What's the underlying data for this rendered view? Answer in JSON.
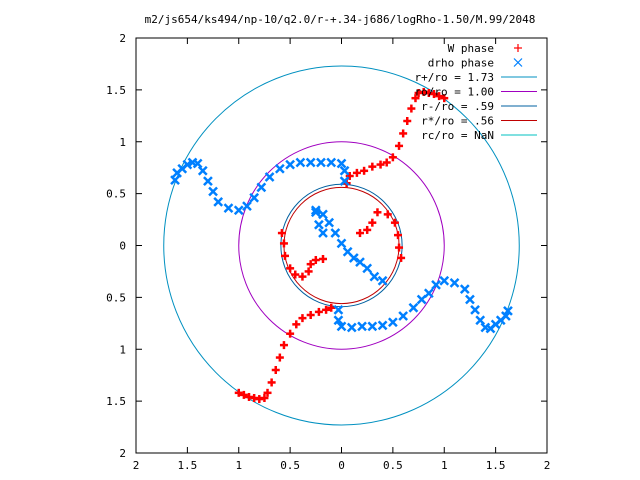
{
  "chart_data": {
    "type": "scatter",
    "title": "m2/js654/ks494/np-10/q2.0/r-+.34-j686/logRho-1.50/M.99/2048",
    "xlabel": "",
    "ylabel": "",
    "xlim": [
      -2,
      2
    ],
    "ylim": [
      -2,
      2
    ],
    "x_tick_values": [
      -2,
      -1.5,
      -1,
      -0.5,
      0,
      0.5,
      1,
      1.5,
      2
    ],
    "x_tick_labels": [
      "2",
      "1.5",
      "1",
      "0.5",
      "0",
      "0.5",
      "1",
      "1.5",
      "2"
    ],
    "y_tick_values": [
      2,
      1.5,
      1,
      0.5,
      0,
      -0.5,
      -1,
      -1.5,
      -2
    ],
    "y_tick_labels": [
      "2",
      "1.5",
      "1",
      "0.5",
      "0",
      "0.5",
      "1",
      "1.5",
      "2"
    ],
    "grid": false,
    "legend_position": "top-right",
    "series": [
      {
        "name": "W phase",
        "marker": "plus",
        "color": "#ff0000",
        "points": [
          [
            -1.0,
            -1.42
          ],
          [
            -0.95,
            -1.44
          ],
          [
            -0.9,
            -1.46
          ],
          [
            -0.85,
            -1.47
          ],
          [
            -0.8,
            -1.48
          ],
          [
            -0.75,
            -1.47
          ],
          [
            -0.72,
            -1.42
          ],
          [
            -0.68,
            -1.32
          ],
          [
            -0.64,
            -1.2
          ],
          [
            -0.6,
            -1.08
          ],
          [
            -0.56,
            -0.96
          ],
          [
            -0.5,
            -0.85
          ],
          [
            -0.44,
            -0.76
          ],
          [
            -0.38,
            -0.7
          ],
          [
            -0.3,
            -0.67
          ],
          [
            -0.22,
            -0.64
          ],
          [
            -0.15,
            -0.62
          ],
          [
            -0.1,
            -0.6
          ],
          [
            1.0,
            1.42
          ],
          [
            0.95,
            1.44
          ],
          [
            0.9,
            1.46
          ],
          [
            0.85,
            1.47
          ],
          [
            0.8,
            1.48
          ],
          [
            0.75,
            1.47
          ],
          [
            0.72,
            1.42
          ],
          [
            0.68,
            1.32
          ],
          [
            0.64,
            1.2
          ],
          [
            0.6,
            1.08
          ],
          [
            0.56,
            0.96
          ],
          [
            0.5,
            0.85
          ],
          [
            0.44,
            0.8
          ],
          [
            0.38,
            0.78
          ],
          [
            0.3,
            0.76
          ],
          [
            0.22,
            0.72
          ],
          [
            0.15,
            0.7
          ],
          [
            0.08,
            0.67
          ],
          [
            0.05,
            0.6
          ],
          [
            -0.58,
            0.12
          ],
          [
            -0.56,
            0.02
          ],
          [
            -0.55,
            -0.1
          ],
          [
            -0.5,
            -0.22
          ],
          [
            -0.45,
            -0.28
          ],
          [
            -0.38,
            -0.3
          ],
          [
            -0.32,
            -0.25
          ],
          [
            -0.3,
            -0.18
          ],
          [
            -0.25,
            -0.14
          ],
          [
            -0.18,
            -0.13
          ],
          [
            0.58,
            -0.12
          ],
          [
            0.56,
            -0.02
          ],
          [
            0.55,
            0.1
          ],
          [
            0.52,
            0.22
          ],
          [
            0.45,
            0.3
          ],
          [
            0.35,
            0.32
          ],
          [
            0.3,
            0.22
          ],
          [
            0.25,
            0.15
          ],
          [
            0.18,
            0.12
          ]
        ]
      },
      {
        "name": "drho phase",
        "marker": "cross",
        "color": "#0080ff",
        "points": [
          [
            -1.62,
            0.63
          ],
          [
            -1.6,
            0.7
          ],
          [
            -1.55,
            0.74
          ],
          [
            -1.5,
            0.78
          ],
          [
            -1.45,
            0.8
          ],
          [
            -1.4,
            0.79
          ],
          [
            -1.35,
            0.72
          ],
          [
            -1.3,
            0.62
          ],
          [
            -1.25,
            0.52
          ],
          [
            -1.2,
            0.42
          ],
          [
            -1.1,
            0.36
          ],
          [
            -1.0,
            0.34
          ],
          [
            -0.92,
            0.38
          ],
          [
            -0.85,
            0.46
          ],
          [
            -0.78,
            0.56
          ],
          [
            -0.7,
            0.66
          ],
          [
            -0.6,
            0.74
          ],
          [
            -0.5,
            0.78
          ],
          [
            -0.4,
            0.8
          ],
          [
            -0.3,
            0.8
          ],
          [
            -0.2,
            0.8
          ],
          [
            -0.1,
            0.8
          ],
          [
            0.0,
            0.79
          ],
          [
            0.03,
            0.72
          ],
          [
            0.03,
            0.62
          ],
          [
            1.62,
            -0.63
          ],
          [
            1.6,
            -0.68
          ],
          [
            1.55,
            -0.72
          ],
          [
            1.5,
            -0.76
          ],
          [
            1.45,
            -0.8
          ],
          [
            1.4,
            -0.79
          ],
          [
            1.35,
            -0.72
          ],
          [
            1.3,
            -0.62
          ],
          [
            1.25,
            -0.52
          ],
          [
            1.2,
            -0.42
          ],
          [
            1.1,
            -0.36
          ],
          [
            1.0,
            -0.34
          ],
          [
            0.92,
            -0.38
          ],
          [
            0.85,
            -0.46
          ],
          [
            0.78,
            -0.52
          ],
          [
            0.7,
            -0.6
          ],
          [
            0.6,
            -0.68
          ],
          [
            0.5,
            -0.74
          ],
          [
            0.4,
            -0.77
          ],
          [
            0.3,
            -0.78
          ],
          [
            0.2,
            -0.78
          ],
          [
            0.1,
            -0.79
          ],
          [
            0.0,
            -0.78
          ],
          [
            -0.03,
            -0.72
          ],
          [
            -0.03,
            -0.62
          ],
          [
            -0.25,
            0.34
          ],
          [
            -0.18,
            0.3
          ],
          [
            -0.12,
            0.22
          ],
          [
            -0.06,
            0.12
          ],
          [
            0.0,
            0.02
          ],
          [
            0.06,
            -0.06
          ],
          [
            0.12,
            -0.12
          ],
          [
            0.18,
            -0.16
          ],
          [
            0.25,
            -0.22
          ],
          [
            0.32,
            -0.3
          ],
          [
            0.4,
            -0.34
          ],
          [
            -0.25,
            0.32
          ],
          [
            -0.22,
            0.2
          ],
          [
            -0.18,
            0.12
          ]
        ]
      }
    ],
    "circles": [
      {
        "label": "r+/ro = 1.73",
        "radius": 1.73,
        "color": "#0090c0"
      },
      {
        "label": "ro/ro = 1.00",
        "radius": 1.0,
        "color": "#a000c0"
      },
      {
        "label": "r-/ro = .59",
        "radius": 0.59,
        "color": "#0060a0"
      },
      {
        "label": "r*/ro = .56",
        "radius": 0.56,
        "color": "#c00000"
      },
      {
        "label": "rc/ro = NaN",
        "radius": null,
        "color": "#00c0c0"
      }
    ]
  }
}
